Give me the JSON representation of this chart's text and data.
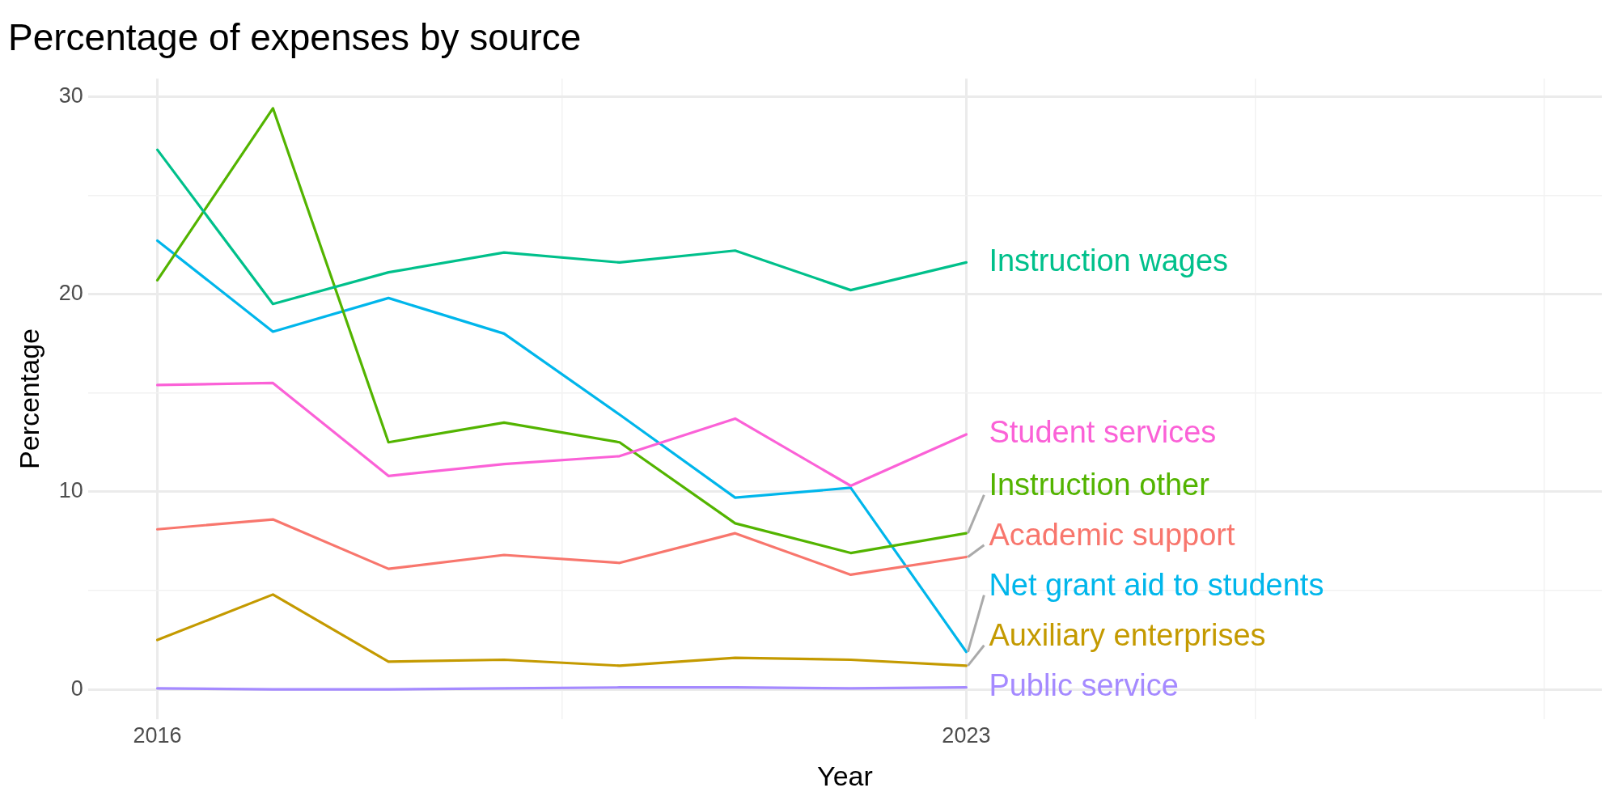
{
  "chart_data": {
    "type": "line",
    "title": "Percentage of expenses by source",
    "xlabel": "Year",
    "ylabel": "Percentage",
    "x": [
      2016,
      2017,
      2018,
      2019,
      2020,
      2021,
      2022,
      2023
    ],
    "series": [
      {
        "name": "Instruction wages",
        "color": "#00c08b",
        "values": [
          27.3,
          19.5,
          21.1,
          22.1,
          21.6,
          22.2,
          20.2,
          21.6
        ]
      },
      {
        "name": "Student services",
        "color": "#fb61d7",
        "values": [
          15.4,
          15.5,
          10.8,
          11.4,
          11.8,
          13.7,
          10.3,
          12.9
        ]
      },
      {
        "name": "Instruction other",
        "color": "#53b400",
        "values": [
          20.7,
          29.4,
          12.5,
          13.5,
          12.5,
          8.4,
          6.9,
          7.9
        ]
      },
      {
        "name": "Academic support",
        "color": "#f8766d",
        "values": [
          8.1,
          8.6,
          6.1,
          6.8,
          6.4,
          7.9,
          5.8,
          6.7
        ]
      },
      {
        "name": "Net grant aid to students",
        "color": "#00b6eb",
        "values": [
          22.7,
          18.1,
          19.8,
          18.0,
          13.9,
          9.7,
          10.2,
          1.9
        ]
      },
      {
        "name": "Auxiliary enterprises",
        "color": "#c49a00",
        "values": [
          2.5,
          4.8,
          1.4,
          1.5,
          1.2,
          1.6,
          1.5,
          1.2
        ]
      },
      {
        "name": "Public service",
        "color": "#a58aff",
        "values": [
          0.05,
          0.0,
          0.0,
          0.05,
          0.1,
          0.1,
          0.05,
          0.1
        ]
      }
    ],
    "xlim": [
      2015.4,
      2028.5
    ],
    "xticks": [
      2016,
      {
        "value": 2019.5,
        "label": null
      },
      2023,
      {
        "value": 2025.5,
        "label": null
      },
      {
        "value": 2028,
        "label": null
      }
    ],
    "ylim": [
      -1.5,
      30.9
    ],
    "yticks": [
      0,
      {
        "value": 5,
        "label": null
      },
      10,
      {
        "value": 15,
        "label": null
      },
      20,
      {
        "value": 25,
        "label": null
      },
      30
    ],
    "grid": true,
    "legend": false,
    "marker": "none",
    "line_style": "solid"
  }
}
